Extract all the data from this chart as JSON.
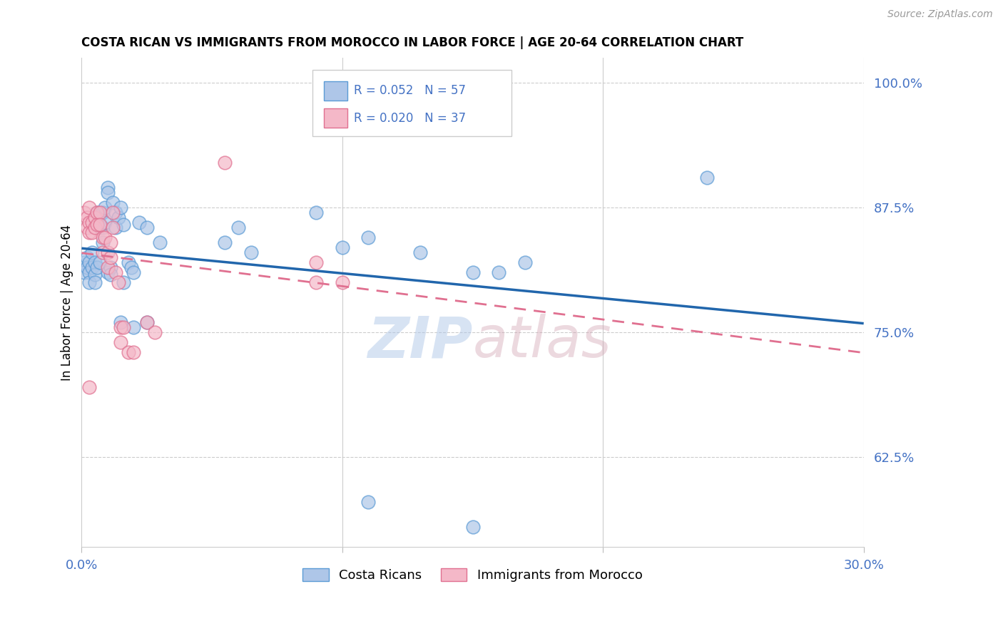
{
  "title": "COSTA RICAN VS IMMIGRANTS FROM MOROCCO IN LABOR FORCE | AGE 20-64 CORRELATION CHART",
  "source": "Source: ZipAtlas.com",
  "ylabel": "In Labor Force | Age 20-64",
  "yticks": [
    0.625,
    0.75,
    0.875,
    1.0
  ],
  "ytick_labels": [
    "62.5%",
    "75.0%",
    "87.5%",
    "100.0%"
  ],
  "xlim": [
    0.0,
    0.3
  ],
  "ylim": [
    0.535,
    1.025
  ],
  "R_blue": 0.052,
  "N_blue": 57,
  "R_pink": 0.02,
  "N_pink": 37,
  "legend_label_blue": "Costa Ricans",
  "legend_label_pink": "Immigrants from Morocco",
  "watermark_zip": "ZIP",
  "watermark_atlas": "atlas",
  "blue_color": "#aec6e8",
  "blue_edge_color": "#5b9bd5",
  "blue_line_color": "#2166ac",
  "pink_color": "#f4b8c8",
  "pink_edge_color": "#e07090",
  "pink_line_color": "#e07090",
  "blue_scatter": [
    [
      0.001,
      0.82
    ],
    [
      0.001,
      0.81
    ],
    [
      0.002,
      0.825
    ],
    [
      0.002,
      0.815
    ],
    [
      0.003,
      0.82
    ],
    [
      0.003,
      0.81
    ],
    [
      0.003,
      0.8
    ],
    [
      0.004,
      0.83
    ],
    [
      0.004,
      0.815
    ],
    [
      0.005,
      0.82
    ],
    [
      0.005,
      0.808
    ],
    [
      0.005,
      0.8
    ],
    [
      0.006,
      0.87
    ],
    [
      0.006,
      0.86
    ],
    [
      0.006,
      0.815
    ],
    [
      0.007,
      0.868
    ],
    [
      0.007,
      0.855
    ],
    [
      0.007,
      0.82
    ],
    [
      0.008,
      0.87
    ],
    [
      0.008,
      0.855
    ],
    [
      0.008,
      0.84
    ],
    [
      0.009,
      0.875
    ],
    [
      0.009,
      0.86
    ],
    [
      0.01,
      0.895
    ],
    [
      0.01,
      0.89
    ],
    [
      0.01,
      0.81
    ],
    [
      0.011,
      0.815
    ],
    [
      0.011,
      0.808
    ],
    [
      0.012,
      0.88
    ],
    [
      0.013,
      0.87
    ],
    [
      0.013,
      0.855
    ],
    [
      0.014,
      0.865
    ],
    [
      0.015,
      0.875
    ],
    [
      0.016,
      0.858
    ],
    [
      0.016,
      0.8
    ],
    [
      0.018,
      0.82
    ],
    [
      0.019,
      0.815
    ],
    [
      0.02,
      0.81
    ],
    [
      0.022,
      0.86
    ],
    [
      0.025,
      0.855
    ],
    [
      0.03,
      0.84
    ],
    [
      0.055,
      0.84
    ],
    [
      0.06,
      0.855
    ],
    [
      0.065,
      0.83
    ],
    [
      0.09,
      0.87
    ],
    [
      0.1,
      0.835
    ],
    [
      0.11,
      0.845
    ],
    [
      0.13,
      0.83
    ],
    [
      0.15,
      0.81
    ],
    [
      0.16,
      0.81
    ],
    [
      0.17,
      0.82
    ],
    [
      0.24,
      0.905
    ],
    [
      0.015,
      0.76
    ],
    [
      0.02,
      0.755
    ],
    [
      0.025,
      0.76
    ],
    [
      0.11,
      0.58
    ],
    [
      0.15,
      0.555
    ]
  ],
  "pink_scatter": [
    [
      0.001,
      0.87
    ],
    [
      0.002,
      0.865
    ],
    [
      0.002,
      0.855
    ],
    [
      0.003,
      0.875
    ],
    [
      0.003,
      0.86
    ],
    [
      0.003,
      0.85
    ],
    [
      0.004,
      0.86
    ],
    [
      0.004,
      0.85
    ],
    [
      0.005,
      0.865
    ],
    [
      0.005,
      0.855
    ],
    [
      0.006,
      0.87
    ],
    [
      0.006,
      0.858
    ],
    [
      0.007,
      0.87
    ],
    [
      0.007,
      0.858
    ],
    [
      0.008,
      0.845
    ],
    [
      0.008,
      0.83
    ],
    [
      0.009,
      0.845
    ],
    [
      0.01,
      0.83
    ],
    [
      0.01,
      0.815
    ],
    [
      0.011,
      0.84
    ],
    [
      0.011,
      0.825
    ],
    [
      0.012,
      0.87
    ],
    [
      0.012,
      0.855
    ],
    [
      0.013,
      0.81
    ],
    [
      0.014,
      0.8
    ],
    [
      0.015,
      0.755
    ],
    [
      0.015,
      0.74
    ],
    [
      0.016,
      0.755
    ],
    [
      0.018,
      0.73
    ],
    [
      0.02,
      0.73
    ],
    [
      0.025,
      0.76
    ],
    [
      0.028,
      0.75
    ],
    [
      0.055,
      0.92
    ],
    [
      0.09,
      0.82
    ],
    [
      0.1,
      0.8
    ],
    [
      0.09,
      0.8
    ],
    [
      0.003,
      0.695
    ]
  ]
}
